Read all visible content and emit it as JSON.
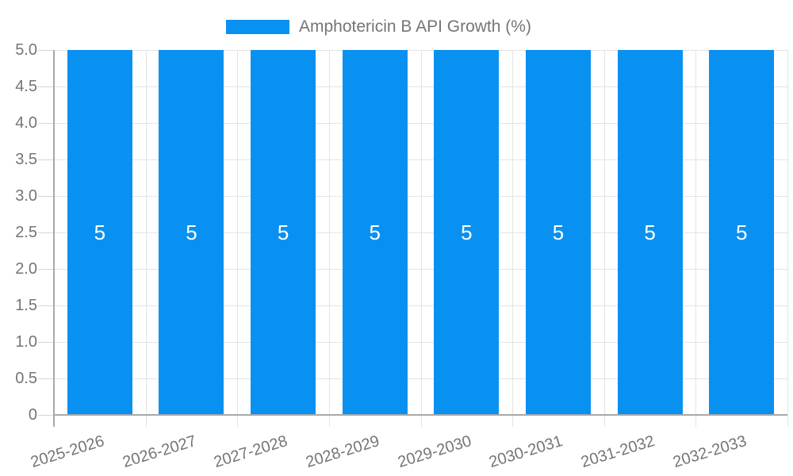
{
  "legend": {
    "label": "Amphotericin B API Growth (%)"
  },
  "chart_data": {
    "type": "bar",
    "title": "",
    "categories": [
      "2025-2026",
      "2026-2027",
      "2027-2028",
      "2028-2029",
      "2029-2030",
      "2030-2031",
      "2031-2032",
      "2032-2033"
    ],
    "series": [
      {
        "name": "Amphotericin B API Growth (%)",
        "values": [
          5,
          5,
          5,
          5,
          5,
          5,
          5,
          5
        ]
      }
    ],
    "bar_value_labels": [
      "5",
      "5",
      "5",
      "5",
      "5",
      "5",
      "5",
      "5"
    ],
    "xlabel": "",
    "ylabel": "",
    "ylim": [
      0,
      5
    ],
    "ytick_step": 0.5,
    "ytick_labels": [
      "5.0",
      "4.5",
      "4.0",
      "3.5",
      "3.0",
      "2.5",
      "2.0",
      "1.5",
      "1.0",
      "0.5",
      "0"
    ],
    "grid": "on",
    "legend_position": "top-center",
    "colors": {
      "bar": "#0991f1",
      "bar_value_label": "#ffffff",
      "axis_text": "#757575",
      "legend_text": "#757575",
      "grid_line": "#e4e4e4",
      "axis_line": "#a8a8a8",
      "tick_line": "#d6d6d6",
      "background": "#ffffff"
    }
  }
}
